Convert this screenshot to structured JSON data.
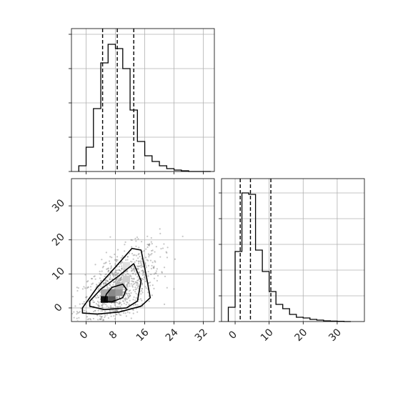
{
  "chart_data": {
    "type": "corner",
    "grid": true,
    "panels": [
      {
        "name": "histogram-param-1",
        "type": "histogram",
        "xlim": [
          -4,
          35
        ],
        "ylim": [
          0,
          1.0
        ],
        "bin_edges": [
          -2,
          0,
          2,
          4,
          6,
          8,
          10,
          12,
          14,
          16,
          18,
          20,
          22,
          24,
          26,
          28,
          30,
          32,
          34
        ],
        "counts": [
          0.04,
          0.17,
          0.44,
          0.76,
          0.89,
          0.86,
          0.72,
          0.43,
          0.21,
          0.11,
          0.07,
          0.04,
          0.02,
          0.01,
          0.005,
          0,
          0,
          0
        ],
        "quantile_lines": [
          4.5,
          8.5,
          13
        ],
        "xticks": [
          0,
          8,
          16,
          24,
          32
        ],
        "yticks": [
          0.0,
          0.24,
          0.48,
          0.72,
          0.96
        ]
      },
      {
        "name": "scatter-contour-param-1-vs-2",
        "type": "scatter_contour",
        "xlim": [
          -4,
          35
        ],
        "ylim": [
          -4,
          38
        ],
        "xticks": [
          0,
          8,
          16,
          24,
          32
        ],
        "yticks": [
          0,
          10,
          20,
          30
        ],
        "xtick_labels": [
          "0",
          "8",
          "16",
          "24",
          "32"
        ],
        "ytick_labels": [
          "0",
          "10",
          "20",
          "30"
        ],
        "scatter_center": [
          9,
          6
        ],
        "contours": [
          {
            "level": "inner",
            "points": [
              [
                5,
                2
              ],
              [
                7,
                1.8
              ],
              [
                10,
                3
              ],
              [
                11,
                5.5
              ],
              [
                10,
                7
              ],
              [
                7,
                6
              ],
              [
                5.5,
                4
              ]
            ]
          },
          {
            "level": "middle",
            "points": [
              [
                1,
                0.5
              ],
              [
                5,
                -0.5
              ],
              [
                11,
                0
              ],
              [
                14,
                2
              ],
              [
                15,
                8
              ],
              [
                13,
                13
              ],
              [
                9,
                9.5
              ],
              [
                4,
                5.5
              ],
              [
                1,
                2
              ]
            ]
          },
          {
            "level": "outer",
            "points": [
              [
                -1,
                -1.5
              ],
              [
                3,
                -1.8
              ],
              [
                9,
                -1.2
              ],
              [
                15,
                0.5
              ],
              [
                17.5,
                3
              ],
              [
                16.5,
                9
              ],
              [
                15,
                17
              ],
              [
                12.5,
                17.5
              ],
              [
                8,
                12
              ],
              [
                3,
                6
              ],
              [
                -1,
                0
              ]
            ]
          }
        ],
        "density_cells": [
          {
            "x": 5,
            "y": 2.5,
            "shade": "#111111"
          },
          {
            "x": 7,
            "y": 2.5,
            "shade": "#555555"
          },
          {
            "x": 7,
            "y": 4.5,
            "shade": "#888888"
          },
          {
            "x": 9,
            "y": 4.5,
            "shade": "#999999"
          },
          {
            "x": 5,
            "y": 4.5,
            "shade": "#aaaaaa"
          },
          {
            "x": 9,
            "y": 6.5,
            "shade": "#b8b8b8"
          },
          {
            "x": 11,
            "y": 8.5,
            "shade": "#d0d0d0"
          },
          {
            "x": 11,
            "y": 12.5,
            "shade": "#e0e0e0"
          }
        ]
      },
      {
        "name": "histogram-param-2",
        "type": "histogram",
        "xlim": [
          -4,
          38
        ],
        "ylim": [
          0,
          1.0
        ],
        "bin_edges": [
          -2,
          0,
          2,
          4,
          6,
          8,
          10,
          12,
          14,
          16,
          18,
          20,
          22,
          24,
          26,
          28,
          30,
          32,
          34
        ],
        "counts": [
          0.1,
          0.49,
          0.9,
          0.89,
          0.5,
          0.35,
          0.21,
          0.12,
          0.09,
          0.05,
          0.03,
          0.025,
          0.015,
          0.01,
          0.005,
          0.003,
          0.002,
          0
        ],
        "quantile_lines": [
          1.5,
          4.5,
          10.5
        ],
        "xticks": [
          0,
          10,
          20,
          30
        ],
        "xtick_labels": [
          "0",
          "10",
          "20",
          "30"
        ],
        "yticks": [
          0.0,
          0.18,
          0.36,
          0.54,
          0.72,
          0.9
        ]
      }
    ]
  }
}
